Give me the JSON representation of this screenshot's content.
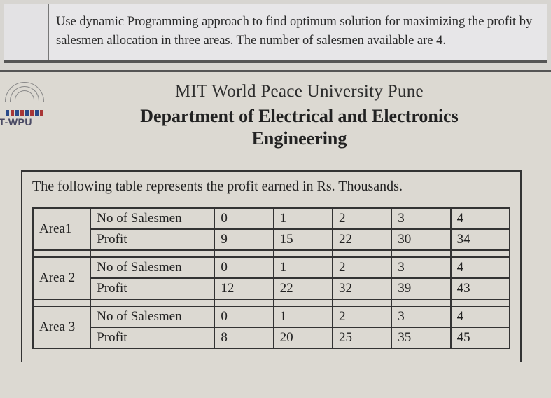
{
  "question_top": "Use dynamic Programming approach to find optimum solution for maximizing the profit by salesmen allocation in three areas. The number of salesmen available are 4.",
  "logo_text": "IT-WPU",
  "university": "MIT World Peace University Pune",
  "department_l1": "Department of Electrical and Electronics",
  "department_l2": "Engineering",
  "table_intro": "The following table represents the profit earned in Rs. Thousands.",
  "row_labels": {
    "salesmen": "No of Salesmen",
    "profit": "Profit"
  },
  "table": {
    "areas": [
      {
        "name": "Area1",
        "salesmen": [
          "0",
          "1",
          "2",
          "3",
          "4"
        ],
        "profit": [
          "9",
          "15",
          "22",
          "30",
          "34"
        ]
      },
      {
        "name": "Area 2",
        "salesmen": [
          "0",
          "1",
          "2",
          "3",
          "4"
        ],
        "profit": [
          "12",
          "22",
          "32",
          "39",
          "43"
        ]
      },
      {
        "name": "Area 3",
        "salesmen": [
          "0",
          "1",
          "2",
          "3",
          "4"
        ],
        "profit": [
          "8",
          "20",
          "25",
          "35",
          "45"
        ]
      }
    ]
  },
  "style": {
    "body_bg": "#d7d5d1",
    "top_bg": "#e7e6e8",
    "doc_bg": "#dcd9d2",
    "border_color": "#333333",
    "text_color": "#222222",
    "logo_label_color": "#4a4a64",
    "font_family": "Times New Roman",
    "univ_fontsize": 25,
    "dept_fontsize": 26,
    "lead_fontsize": 20,
    "cell_fontsize": 19
  }
}
